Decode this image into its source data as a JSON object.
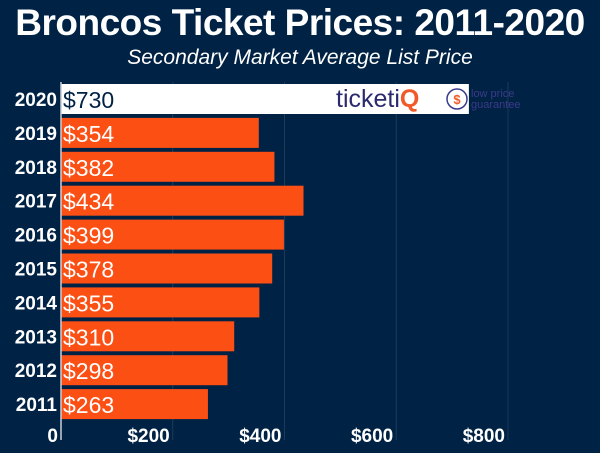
{
  "chart_data": {
    "type": "bar",
    "orientation": "horizontal",
    "title": "Broncos Ticket Prices: 2011-2020",
    "subtitle": "Secondary Market Average List Price",
    "categories": [
      "2020",
      "2019",
      "2018",
      "2017",
      "2016",
      "2015",
      "2014",
      "2013",
      "2012",
      "2011"
    ],
    "values": [
      730,
      354,
      382,
      434,
      399,
      378,
      355,
      310,
      298,
      263
    ],
    "data_labels": [
      "$730",
      "$354",
      "$382",
      "$434",
      "$399",
      "$378",
      "$355",
      "$310",
      "$298",
      "$263"
    ],
    "xlim": [
      0,
      800
    ],
    "x_ticks": [
      0,
      200,
      400,
      600,
      800
    ],
    "x_tick_labels": [
      "0",
      "$200",
      "$400",
      "$600",
      "$800"
    ],
    "grid": true,
    "colors": {
      "background": "#002244",
      "bar": "#fb4f14",
      "highlight_bar": "#ffffff",
      "highlight_label": "#002244",
      "grid": "#1c3a5c"
    },
    "highlight_category": "2020"
  },
  "logo": {
    "brand_a": "ticketi",
    "brand_b": "Q",
    "tagline_1": "low price",
    "tagline_2": "guarantee"
  }
}
